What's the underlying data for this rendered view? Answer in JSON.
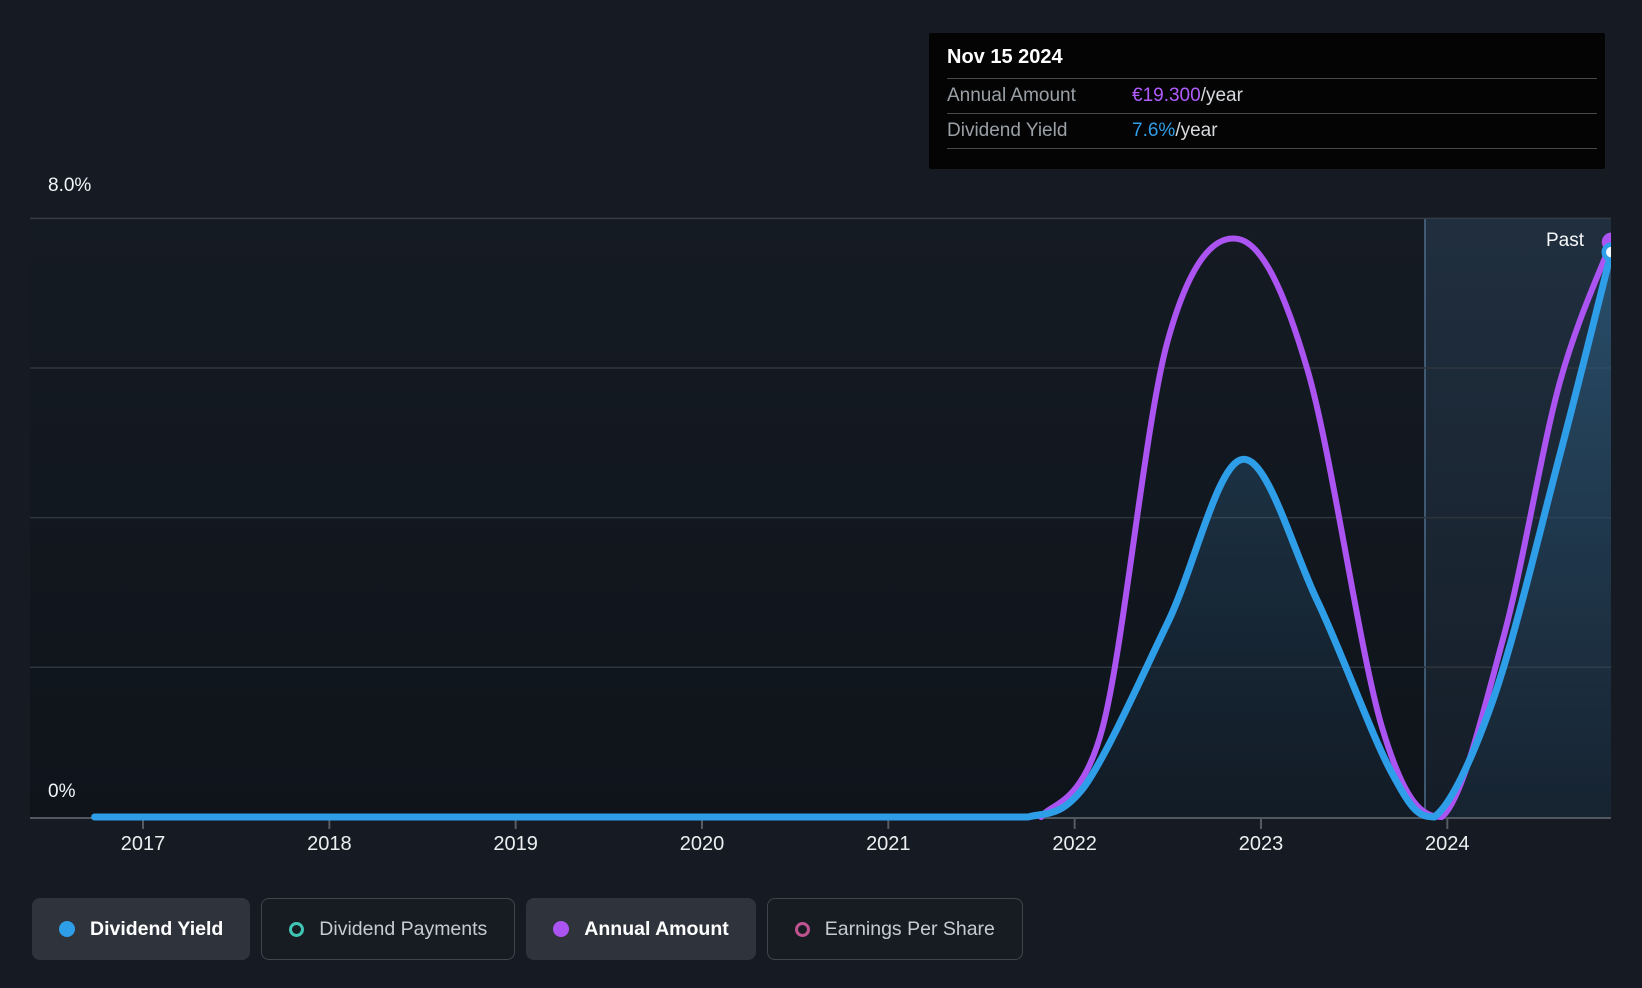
{
  "tooltip": {
    "date": "Nov 15 2024",
    "rows": [
      {
        "label": "Annual Amount",
        "value": "€19.300",
        "suffix": "/year",
        "color": "#b05cff"
      },
      {
        "label": "Dividend Yield",
        "value": "7.6%",
        "suffix": "/year",
        "color": "#2f9ee8"
      }
    ]
  },
  "y_axis": {
    "top_label": "8.0%",
    "bottom_label": "0%"
  },
  "x_axis": {
    "years": [
      "2017",
      "2018",
      "2019",
      "2020",
      "2021",
      "2022",
      "2023",
      "2024"
    ]
  },
  "past_label": "Past",
  "legend": {
    "items": [
      {
        "label": "Dividend Yield",
        "marker": "filled-dot",
        "color": "#2f9ee8",
        "selected": true
      },
      {
        "label": "Dividend Payments",
        "marker": "outline-ring",
        "color": "#40c4b4",
        "selected": false
      },
      {
        "label": "Annual Amount",
        "marker": "filled-dot",
        "color": "#ab54f2",
        "selected": true
      },
      {
        "label": "Earnings Per Share",
        "marker": "outline-ring",
        "color": "#bf5390",
        "selected": false
      }
    ]
  },
  "colors": {
    "background": "#161b23",
    "plot_background_top": "#151b23",
    "plot_background_bottom": "#0f141b",
    "gridline": "#2e353e",
    "axis_line": "#515860",
    "dividend_yield_line": "#2f9ee8",
    "annual_amount_line": "#ab54f2",
    "area_fill": "#2f7db4",
    "past_region_fill": "#5a96cd",
    "tooltip_background": "#040404"
  },
  "chart_data": {
    "type": "line",
    "title": "Dividend history (yield and annual amount)",
    "x_axis": {
      "ticks": [
        "2017",
        "2018",
        "2019",
        "2020",
        "2021",
        "2022",
        "2023",
        "2024"
      ],
      "range": [
        2016.74,
        2024.88
      ]
    },
    "y_axis": {
      "unit": "%",
      "range": [
        0,
        8
      ],
      "gridline_values": [
        0,
        2,
        4,
        6,
        8
      ],
      "visible_labels": [
        "8.0%",
        "0%"
      ]
    },
    "legend_position": "bottom",
    "grid": true,
    "series": [
      {
        "name": "Dividend Yield",
        "unit": "%",
        "color": "#2f9ee8",
        "area_fill": true,
        "points": [
          [
            2016.74,
            0
          ],
          [
            2017.5,
            0
          ],
          [
            2018.5,
            0
          ],
          [
            2019.5,
            0
          ],
          [
            2020.5,
            0
          ],
          [
            2021.4,
            0
          ],
          [
            2021.75,
            0
          ],
          [
            2022.05,
            0.4
          ],
          [
            2022.5,
            2.6
          ],
          [
            2022.9,
            4.78
          ],
          [
            2023.3,
            2.9
          ],
          [
            2023.7,
            0.6
          ],
          [
            2023.93,
            0
          ],
          [
            2024.25,
            1.6
          ],
          [
            2024.6,
            4.8
          ],
          [
            2024.88,
            7.55
          ]
        ]
      },
      {
        "name": "Annual Amount",
        "unit": "EUR/year",
        "color": "#ab54f2",
        "area_fill": false,
        "points": [
          [
            2021.82,
            0
          ],
          [
            2022.15,
            3
          ],
          [
            2022.5,
            16
          ],
          [
            2022.88,
            19.4
          ],
          [
            2023.25,
            15
          ],
          [
            2023.65,
            3
          ],
          [
            2023.97,
            0
          ],
          [
            2024.3,
            6
          ],
          [
            2024.6,
            14.5
          ],
          [
            2024.88,
            19.3
          ]
        ]
      }
    ],
    "annotations": {
      "past_divider_year": 2023.88,
      "past_label": "Past"
    },
    "current_readout": {
      "date": "Nov 15 2024",
      "annual_amount": "€19.300/year",
      "dividend_yield": "7.6%/year"
    }
  }
}
